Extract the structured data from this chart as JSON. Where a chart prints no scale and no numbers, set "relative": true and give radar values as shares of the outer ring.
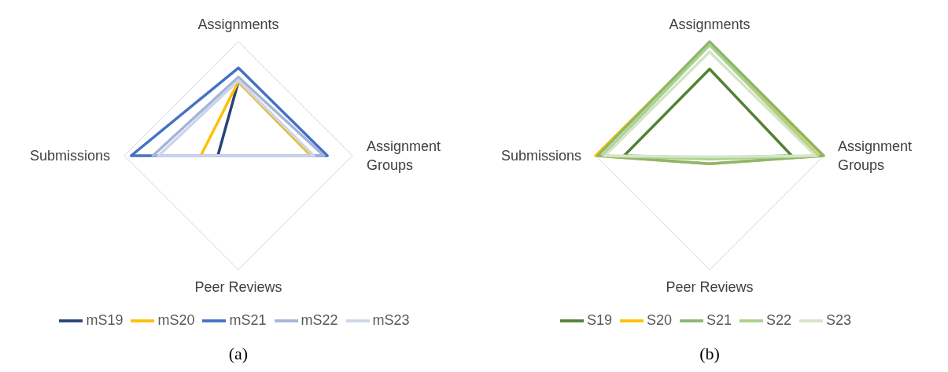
{
  "chart_data": [
    {
      "type": "radar",
      "relative": true,
      "grid": true,
      "legend": "bottom",
      "categories": [
        "Assignments",
        "Assignment Groups",
        "Peer Reviews",
        "Submissions"
      ],
      "annotations": [
        "(a)"
      ],
      "series": [
        {
          "name": "mS19",
          "color": "#264478",
          "values": [
            0.65,
            0.64,
            0,
            0.18
          ]
        },
        {
          "name": "mS20",
          "color": "#ffc000",
          "values": [
            0.65,
            0.64,
            0,
            0.33
          ]
        },
        {
          "name": "mS21",
          "color": "#4472c4",
          "values": [
            0.77,
            0.78,
            0,
            0.94
          ]
        },
        {
          "name": "mS22",
          "color": "#a5b4d9",
          "values": [
            0.69,
            0.75,
            0,
            0.75
          ]
        },
        {
          "name": "mS23",
          "color": "#ccd5ea",
          "values": [
            0.66,
            0.66,
            0,
            0.7
          ]
        }
      ]
    },
    {
      "type": "radar",
      "relative": true,
      "grid": true,
      "legend": "bottom",
      "categories": [
        "Assignments",
        "Assignment Groups",
        "Peer Reviews",
        "Submissions"
      ],
      "annotations": [
        "(b)"
      ],
      "series": [
        {
          "name": "S19",
          "color": "#548235",
          "values": [
            0.76,
            0.72,
            0.02,
            0.75
          ]
        },
        {
          "name": "S20",
          "color": "#ffc000",
          "values": [
            0.99,
            0.99,
            0.07,
            1
          ]
        },
        {
          "name": "S21",
          "color": "#8cb66f",
          "values": [
            1,
            1,
            0.07,
            0.98
          ]
        },
        {
          "name": "S22",
          "color": "#a9d18e",
          "values": [
            0.97,
            0.95,
            0.03,
            0.94
          ]
        },
        {
          "name": "S23",
          "color": "#d5e4c6",
          "values": [
            0.91,
            0.93,
            0.01,
            0.92
          ]
        }
      ]
    }
  ]
}
